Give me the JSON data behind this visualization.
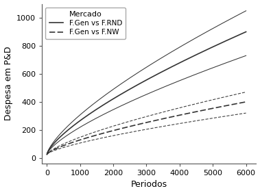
{
  "xlabel": "Periodos",
  "ylabel": "Despesa em P&D",
  "legend_title": "Mercado",
  "legend_entries": [
    "F.Gen vs F.RND",
    "F.Gen vs F.NW"
  ],
  "x_max": 6000,
  "x_ticks": [
    0,
    1000,
    2000,
    3000,
    4000,
    5000,
    6000
  ],
  "y_ticks": [
    0,
    200,
    400,
    600,
    800,
    1000
  ],
  "ylim": [
    -40,
    1100
  ],
  "xlim": [
    -150,
    6300
  ],
  "solid_mean_end": 900,
  "solid_upper_end": 1050,
  "solid_lower_end": 730,
  "solid_start": 25,
  "dashed_mean_end": 400,
  "dashed_upper_end": 470,
  "dashed_lower_end": 320,
  "dashed_start": 25,
  "curve_alpha": 0.72,
  "n_points": 400,
  "background_color": "#ffffff",
  "line_color": "#333333",
  "font_size": 9,
  "lw_main": 1.2,
  "lw_sd": 0.75
}
